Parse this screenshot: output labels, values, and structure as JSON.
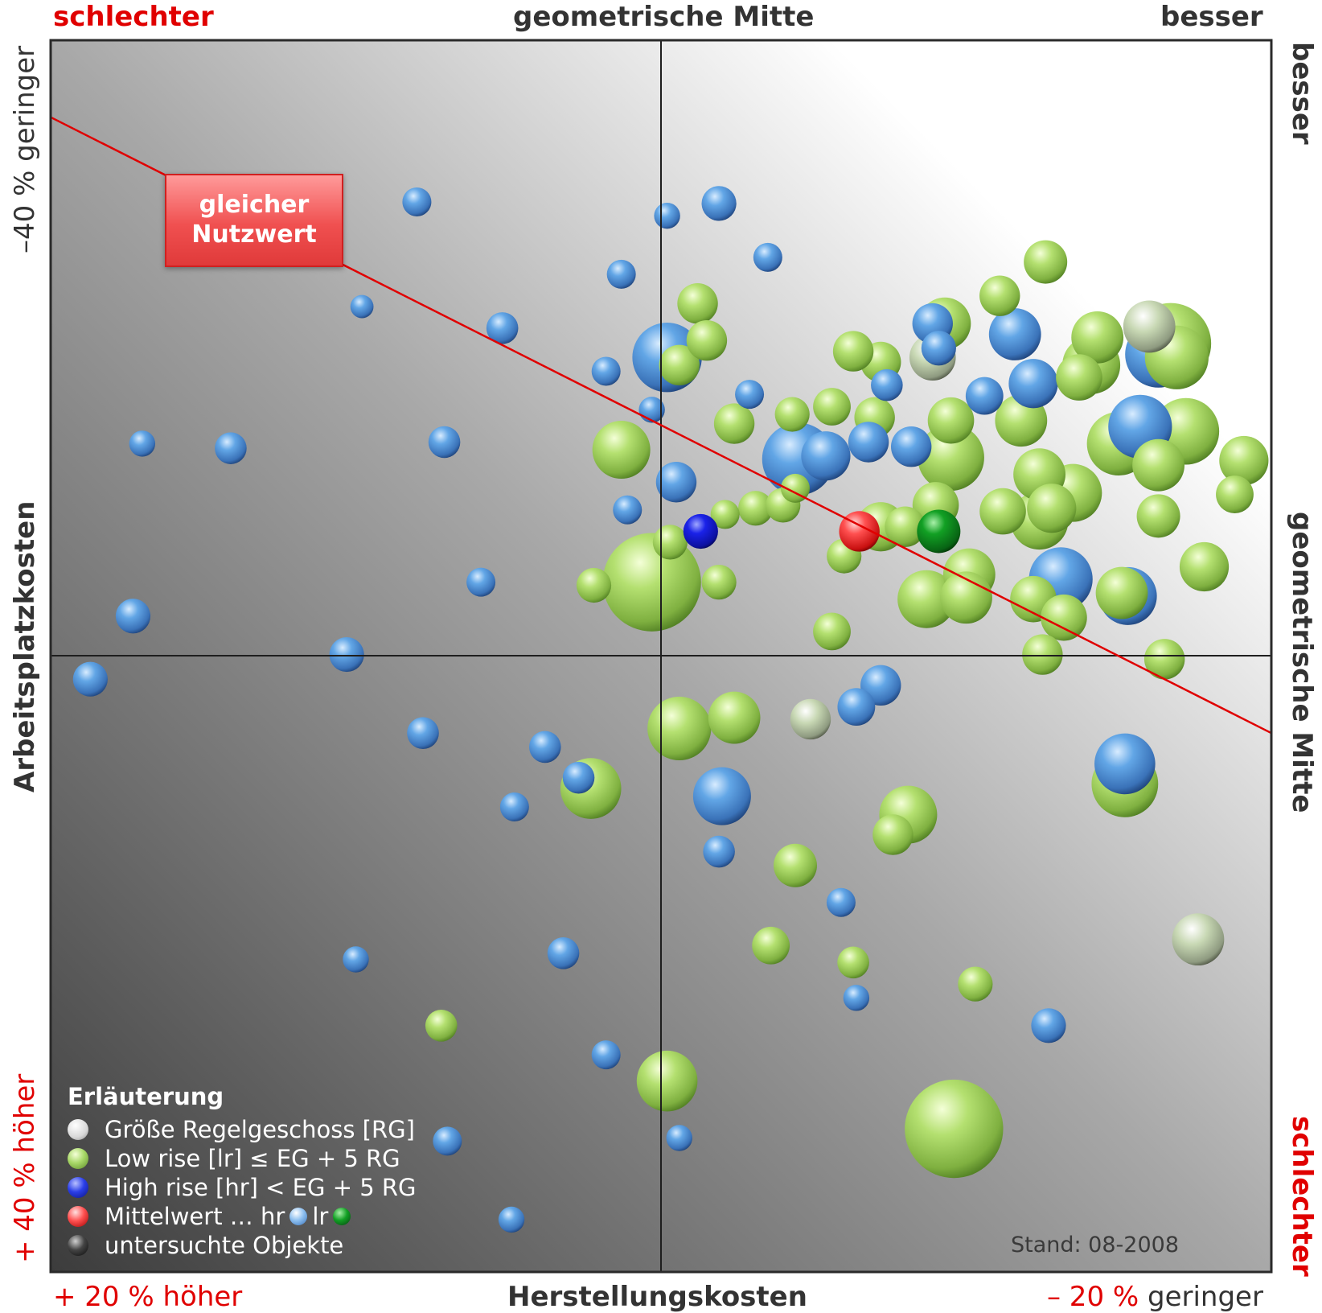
{
  "corner_labels": {
    "top_left": "schlechter",
    "top_center": "geometrische Mitte",
    "top_right": "besser",
    "bottom_left": "+ 20 % höher",
    "bottom_center": "Herstellungskosten",
    "bottom_right_prefix": "– 20 %",
    "bottom_right_word": " geringer",
    "left_top": "–40 % geringer",
    "left_center": "Arbeitsplatzkosten",
    "left_bottom": "+ 40 % höher",
    "right_top": "besser",
    "right_center": "geometrische Mitte",
    "right_bottom": "schlechter"
  },
  "callout": {
    "line1": "gleicher",
    "line2": "Nutzwert"
  },
  "legend": {
    "title": "Erläuterung",
    "items": [
      {
        "label": "Größe Regelgeschoss [RG]",
        "color": "#f2f2f2"
      },
      {
        "label": "Low rise [lr]  ≤ EG + 5 RG",
        "color": "#9ed05a"
      },
      {
        "label": "High rise [hr] < EG + 5 RG",
        "color": "#2a3ee8"
      },
      {
        "label": "Mittelwert … hr",
        "suffix_lr": "lr",
        "color": "#ff5a5a"
      },
      {
        "label": "untersuchte Objekte",
        "color": "#222222"
      }
    ]
  },
  "stand": "Stand: 08-2008",
  "colors": {
    "low_rise": "#9ed05a",
    "high_rise": "#4a90d8",
    "grey_object": "#b8cfa0",
    "mean_all": "#ff3a3a",
    "mean_hr": "#1010d8",
    "mean_lr": "#0a8a1a",
    "reference_line": "#e00000"
  },
  "chart_data": {
    "type": "scatter",
    "title": "",
    "xlabel": "Herstellungskosten",
    "ylabel": "Arbeitsplatzkosten",
    "xlim": [
      20,
      -20
    ],
    "ylim": [
      40,
      -40
    ],
    "x_unit": "% relative to geometric mean",
    "y_unit": "% relative to geometric mean",
    "reference_line": {
      "label": "gleicher Nutzwert",
      "points": [
        [
          20,
          -35
        ],
        [
          -20,
          5
        ]
      ]
    },
    "series": [
      {
        "name": "Low rise [lr]  ≤ EG + 5 RG",
        "points": [
          {
            "x": -1.2,
            "y": -22.9,
            "size": 1.4
          },
          {
            "x": -7.2,
            "y": -19.1,
            "size": 1.4
          },
          {
            "x": -12.6,
            "y": -25.6,
            "size": 1.5
          },
          {
            "x": -9.3,
            "y": -21.6,
            "size": 1.8
          },
          {
            "x": -11.1,
            "y": -23.4,
            "size": 1.4
          },
          {
            "x": -6.3,
            "y": -19.8,
            "size": 1.4
          },
          {
            "x": -14.3,
            "y": -20.7,
            "size": 1.8
          },
          {
            "x": -16.7,
            "y": -20.3,
            "size": 2.8
          },
          {
            "x": -16.9,
            "y": -19.4,
            "size": 2.2
          },
          {
            "x": -14.1,
            "y": -18.9,
            "size": 2.0
          },
          {
            "x": -13.7,
            "y": -18.1,
            "size": 1.6
          },
          {
            "x": -9.5,
            "y": -15.3,
            "size": 1.6
          },
          {
            "x": -7.0,
            "y": -15.5,
            "size": 1.4
          },
          {
            "x": -5.6,
            "y": -16.2,
            "size": 1.3
          },
          {
            "x": -4.3,
            "y": -15.7,
            "size": 1.2
          },
          {
            "x": -2.4,
            "y": -15.1,
            "size": 1.4
          },
          {
            "x": -9.5,
            "y": -12.9,
            "size": 2.3
          },
          {
            "x": -11.8,
            "y": -15.3,
            "size": 1.8
          },
          {
            "x": -16.3,
            "y": -12.4,
            "size": 1.8
          },
          {
            "x": -19.1,
            "y": -12.7,
            "size": 1.7
          },
          {
            "x": -15.0,
            "y": -13.8,
            "size": 2.2
          },
          {
            "x": -17.2,
            "y": -14.6,
            "size": 2.3
          },
          {
            "x": -12.4,
            "y": -11.8,
            "size": 1.8
          },
          {
            "x": -13.5,
            "y": -10.6,
            "size": 2.0
          },
          {
            "x": -12.8,
            "y": -9.6,
            "size": 1.7
          },
          {
            "x": -16.3,
            "y": -9.1,
            "size": 1.5
          },
          {
            "x": -11.2,
            "y": -9.4,
            "size": 1.6
          },
          {
            "x": -8.0,
            "y": -8.4,
            "size": 1.4
          },
          {
            "x": -3.1,
            "y": -9.6,
            "size": 1.2
          },
          {
            "x": -10.1,
            "y": -5.3,
            "size": 1.8
          },
          {
            "x": -10.0,
            "y": -3.8,
            "size": 1.8
          },
          {
            "x": -7.2,
            "y": -8.4,
            "size": 1.7
          },
          {
            "x": -8.7,
            "y": -3.7,
            "size": 2.0
          },
          {
            "x": -12.2,
            "y": -3.7,
            "size": 1.6
          },
          {
            "x": -15.1,
            "y": -4.1,
            "size": 1.8
          },
          {
            "x": -17.8,
            "y": -5.8,
            "size": 1.7
          },
          {
            "x": -18.8,
            "y": -10.5,
            "size": 1.3
          },
          {
            "x": -5.6,
            "y": -1.6,
            "size": 1.3
          },
          {
            "x": -12.5,
            "y": -0.1,
            "size": 1.4
          },
          {
            "x": -16.5,
            "y": 0.2,
            "size": 1.4
          },
          {
            "x": -4.0,
            "y": -9.8,
            "size": 1.2
          },
          {
            "x": -6.0,
            "y": -6.5,
            "size": 1.2
          },
          {
            "x": -0.3,
            "y": -7.4,
            "size": 1.2
          },
          {
            "x": -4.4,
            "y": -10.9,
            "size": 1.0
          },
          {
            "x": -2.1,
            "y": -9.2,
            "size": 1.0
          },
          {
            "x": 1.3,
            "y": -13.4,
            "size": 2.0
          },
          {
            "x": 0.3,
            "y": -4.8,
            "size": 3.4
          },
          {
            "x": 2.2,
            "y": -4.6,
            "size": 1.2
          },
          {
            "x": -1.9,
            "y": -4.8,
            "size": 1.2
          },
          {
            "x": -0.6,
            "y": -18.9,
            "size": 1.4
          },
          {
            "x": -1.5,
            "y": -20.5,
            "size": 1.4
          },
          {
            "x": -0.6,
            "y": 4.7,
            "size": 2.2
          },
          {
            "x": -2.4,
            "y": 4.0,
            "size": 1.8
          },
          {
            "x": 2.3,
            "y": 8.6,
            "size": 2.1
          },
          {
            "x": -8.1,
            "y": 10.3,
            "size": 2.0
          },
          {
            "x": -7.6,
            "y": 11.6,
            "size": 1.4
          },
          {
            "x": -15.2,
            "y": 8.3,
            "size": 2.3
          },
          {
            "x": -4.4,
            "y": 13.6,
            "size": 1.5
          },
          {
            "x": -3.6,
            "y": 18.8,
            "size": 1.3
          },
          {
            "x": -6.3,
            "y": 19.9,
            "size": 1.1
          },
          {
            "x": -10.3,
            "y": 21.3,
            "size": 1.2
          },
          {
            "x": 7.2,
            "y": 24.0,
            "size": 1.1
          },
          {
            "x": -0.2,
            "y": 27.6,
            "size": 2.1
          },
          {
            "x": -9.6,
            "y": 30.7,
            "size": 3.4
          },
          {
            "x": -12.4,
            "y": -8.8,
            "size": 2.0
          },
          {
            "x": -13.2,
            "y": -2.5,
            "size": 1.6
          },
          {
            "x": -9.0,
            "y": -9.8,
            "size": 1.6
          }
        ]
      },
      {
        "name": "High rise [hr] < EG + 5 RG",
        "points": [
          {
            "x": 8.0,
            "y": -29.5,
            "size": 1.0
          },
          {
            "x": -0.2,
            "y": -28.6,
            "size": 0.9
          },
          {
            "x": -1.9,
            "y": -29.4,
            "size": 1.2
          },
          {
            "x": -3.5,
            "y": -25.9,
            "size": 1.0
          },
          {
            "x": 1.3,
            "y": -24.8,
            "size": 1.0
          },
          {
            "x": 9.8,
            "y": -22.7,
            "size": 0.8
          },
          {
            "x": 5.2,
            "y": -21.3,
            "size": 1.1
          },
          {
            "x": -0.2,
            "y": -19.4,
            "size": 2.4
          },
          {
            "x": 1.8,
            "y": -18.5,
            "size": 1.0
          },
          {
            "x": -2.9,
            "y": -17.0,
            "size": 1.0
          },
          {
            "x": 0.3,
            "y": -16.0,
            "size": 0.9
          },
          {
            "x": 17.0,
            "y": -13.8,
            "size": 0.9
          },
          {
            "x": 7.1,
            "y": -13.9,
            "size": 1.1
          },
          {
            "x": -0.5,
            "y": -11.3,
            "size": 1.4
          },
          {
            "x": 1.1,
            "y": -9.5,
            "size": 1.0
          },
          {
            "x": -4.5,
            "y": -12.8,
            "size": 2.5
          },
          {
            "x": -5.4,
            "y": -13.0,
            "size": 1.7
          },
          {
            "x": -6.8,
            "y": -13.9,
            "size": 1.4
          },
          {
            "x": -8.2,
            "y": -13.6,
            "size": 1.4
          },
          {
            "x": -10.6,
            "y": -16.9,
            "size": 1.3
          },
          {
            "x": -8.9,
            "y": -21.6,
            "size": 1.4
          },
          {
            "x": -9.1,
            "y": -20.0,
            "size": 1.2
          },
          {
            "x": -12.2,
            "y": -17.7,
            "size": 1.7
          },
          {
            "x": -15.7,
            "y": -14.9,
            "size": 2.2
          },
          {
            "x": -11.6,
            "y": -20.9,
            "size": 1.8
          },
          {
            "x": -16.3,
            "y": -19.6,
            "size": 2.3
          },
          {
            "x": -7.4,
            "y": -17.6,
            "size": 1.1
          },
          {
            "x": -13.1,
            "y": -5.0,
            "size": 2.2
          },
          {
            "x": -15.3,
            "y": -3.9,
            "size": 2.0
          },
          {
            "x": 5.9,
            "y": -4.8,
            "size": 1.0
          },
          {
            "x": 14.1,
            "y": -13.5,
            "size": 1.1
          },
          {
            "x": 17.3,
            "y": -2.6,
            "size": 1.2
          },
          {
            "x": 10.3,
            "y": -0.1,
            "size": 1.2
          },
          {
            "x": 7.8,
            "y": 5.0,
            "size": 1.1
          },
          {
            "x": -7.2,
            "y": 1.9,
            "size": 1.4
          },
          {
            "x": -15.2,
            "y": 7.0,
            "size": 2.1
          },
          {
            "x": 2.7,
            "y": 7.9,
            "size": 1.1
          },
          {
            "x": 3.8,
            "y": 5.9,
            "size": 1.1
          },
          {
            "x": -5.9,
            "y": 16.0,
            "size": 1.0
          },
          {
            "x": -2.0,
            "y": 9.1,
            "size": 2.0
          },
          {
            "x": -1.9,
            "y": 12.7,
            "size": 1.1
          },
          {
            "x": -6.4,
            "y": 22.2,
            "size": 0.9
          },
          {
            "x": 1.8,
            "y": 25.9,
            "size": 1.0
          },
          {
            "x": 10.0,
            "y": 19.7,
            "size": 0.9
          },
          {
            "x": -12.7,
            "y": 24.0,
            "size": 1.2
          },
          {
            "x": -0.6,
            "y": 31.3,
            "size": 0.9
          },
          {
            "x": 4.9,
            "y": 36.6,
            "size": 0.9
          },
          {
            "x": 7.0,
            "y": 31.5,
            "size": 1.0
          },
          {
            "x": -6.4,
            "y": 3.3,
            "size": 1.3
          },
          {
            "x": 3.2,
            "y": 19.3,
            "size": 1.1
          },
          {
            "x": 4.8,
            "y": 9.8,
            "size": 1.0
          },
          {
            "x": 18.7,
            "y": 1.5,
            "size": 1.2
          }
        ]
      },
      {
        "name": "untersuchte Objekte",
        "points": [
          {
            "x": -8.9,
            "y": -19.4,
            "size": 1.6
          },
          {
            "x": -16.0,
            "y": -21.4,
            "size": 1.8
          },
          {
            "x": -4.9,
            "y": 4.1,
            "size": 1.4
          },
          {
            "x": -17.6,
            "y": 18.4,
            "size": 1.8
          }
        ]
      },
      {
        "name": "Mittelwert",
        "points": [
          {
            "label": "hr",
            "x": -1.3,
            "y": -8.1,
            "size": 1.2
          },
          {
            "label": "all",
            "x": -6.5,
            "y": -8.1,
            "size": 1.4
          },
          {
            "label": "lr",
            "x": -9.1,
            "y": -8.1,
            "size": 1.5
          }
        ]
      }
    ]
  }
}
